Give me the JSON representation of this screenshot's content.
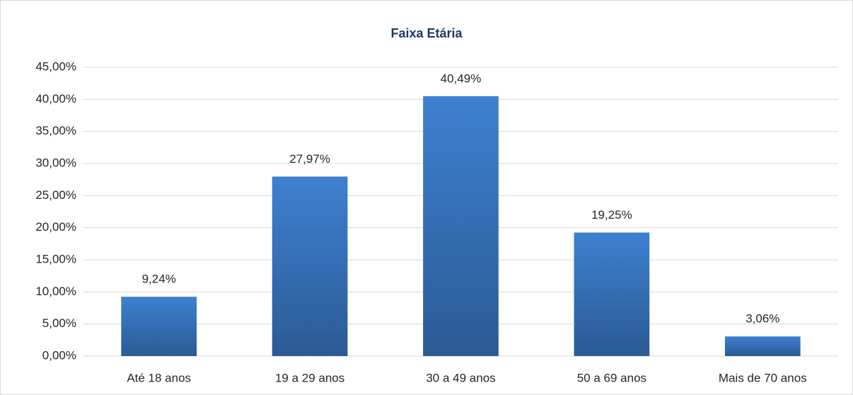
{
  "chart_data": {
    "type": "bar",
    "title": "Faixa Etária",
    "categories": [
      "Até 18 anos",
      "19 a 29 anos",
      "30 a 49 anos",
      "50 a 69 anos",
      "Mais de 70 anos"
    ],
    "values": [
      9.24,
      27.97,
      40.49,
      19.25,
      3.06
    ],
    "value_labels": [
      "9,24%",
      "27,97%",
      "40,49%",
      "19,25%",
      "3,06%"
    ],
    "color": "#3e80d0",
    "ylim": [
      0,
      45
    ],
    "yticks": [
      {
        "value": 0,
        "label": "0,00%"
      },
      {
        "value": 5,
        "label": "5,00%"
      },
      {
        "value": 10,
        "label": "10,00%"
      },
      {
        "value": 15,
        "label": "15,00%"
      },
      {
        "value": 20,
        "label": "20,00%"
      },
      {
        "value": 25,
        "label": "25,00%"
      },
      {
        "value": 30,
        "label": "30,00%"
      },
      {
        "value": 35,
        "label": "35,00%"
      },
      {
        "value": 40,
        "label": "40,00%"
      },
      {
        "value": 45,
        "label": "45,00%"
      }
    ],
    "grid": true
  }
}
